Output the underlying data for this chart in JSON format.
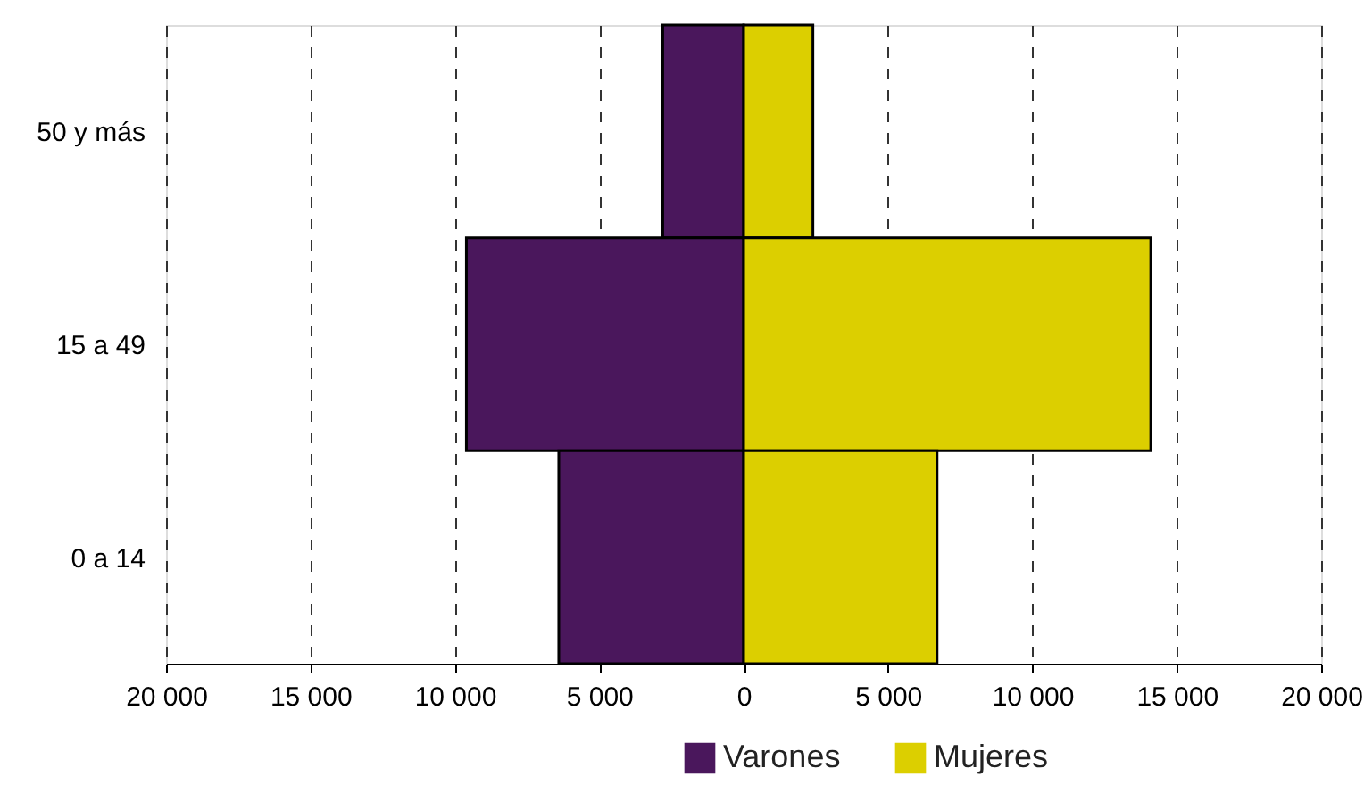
{
  "chart_data": {
    "type": "bar",
    "orientation": "horizontal",
    "stacked": true,
    "categories": [
      "50 y más",
      "15 a 49",
      "0 a 14"
    ],
    "series": [
      {
        "name": "Varones",
        "color": "#4a175c",
        "values": [
          -2800,
          -9600,
          -6400
        ]
      },
      {
        "name": "Mujeres",
        "color": "#dccf00",
        "values": [
          2400,
          14100,
          6700
        ]
      }
    ],
    "xlim": [
      -20000,
      20000
    ],
    "xticks": [
      {
        "value": -20000,
        "label": "20 000"
      },
      {
        "value": -15000,
        "label": "15 000"
      },
      {
        "value": -10000,
        "label": "10 000"
      },
      {
        "value": -5000,
        "label": "5 000"
      },
      0,
      {
        "value": 5000,
        "label": "5 000"
      },
      {
        "value": 10000,
        "label": "10 000"
      },
      {
        "value": 15000,
        "label": "15 000"
      },
      {
        "value": 20000,
        "label": "20 000"
      }
    ],
    "grid": "x",
    "legend": "bottom"
  }
}
